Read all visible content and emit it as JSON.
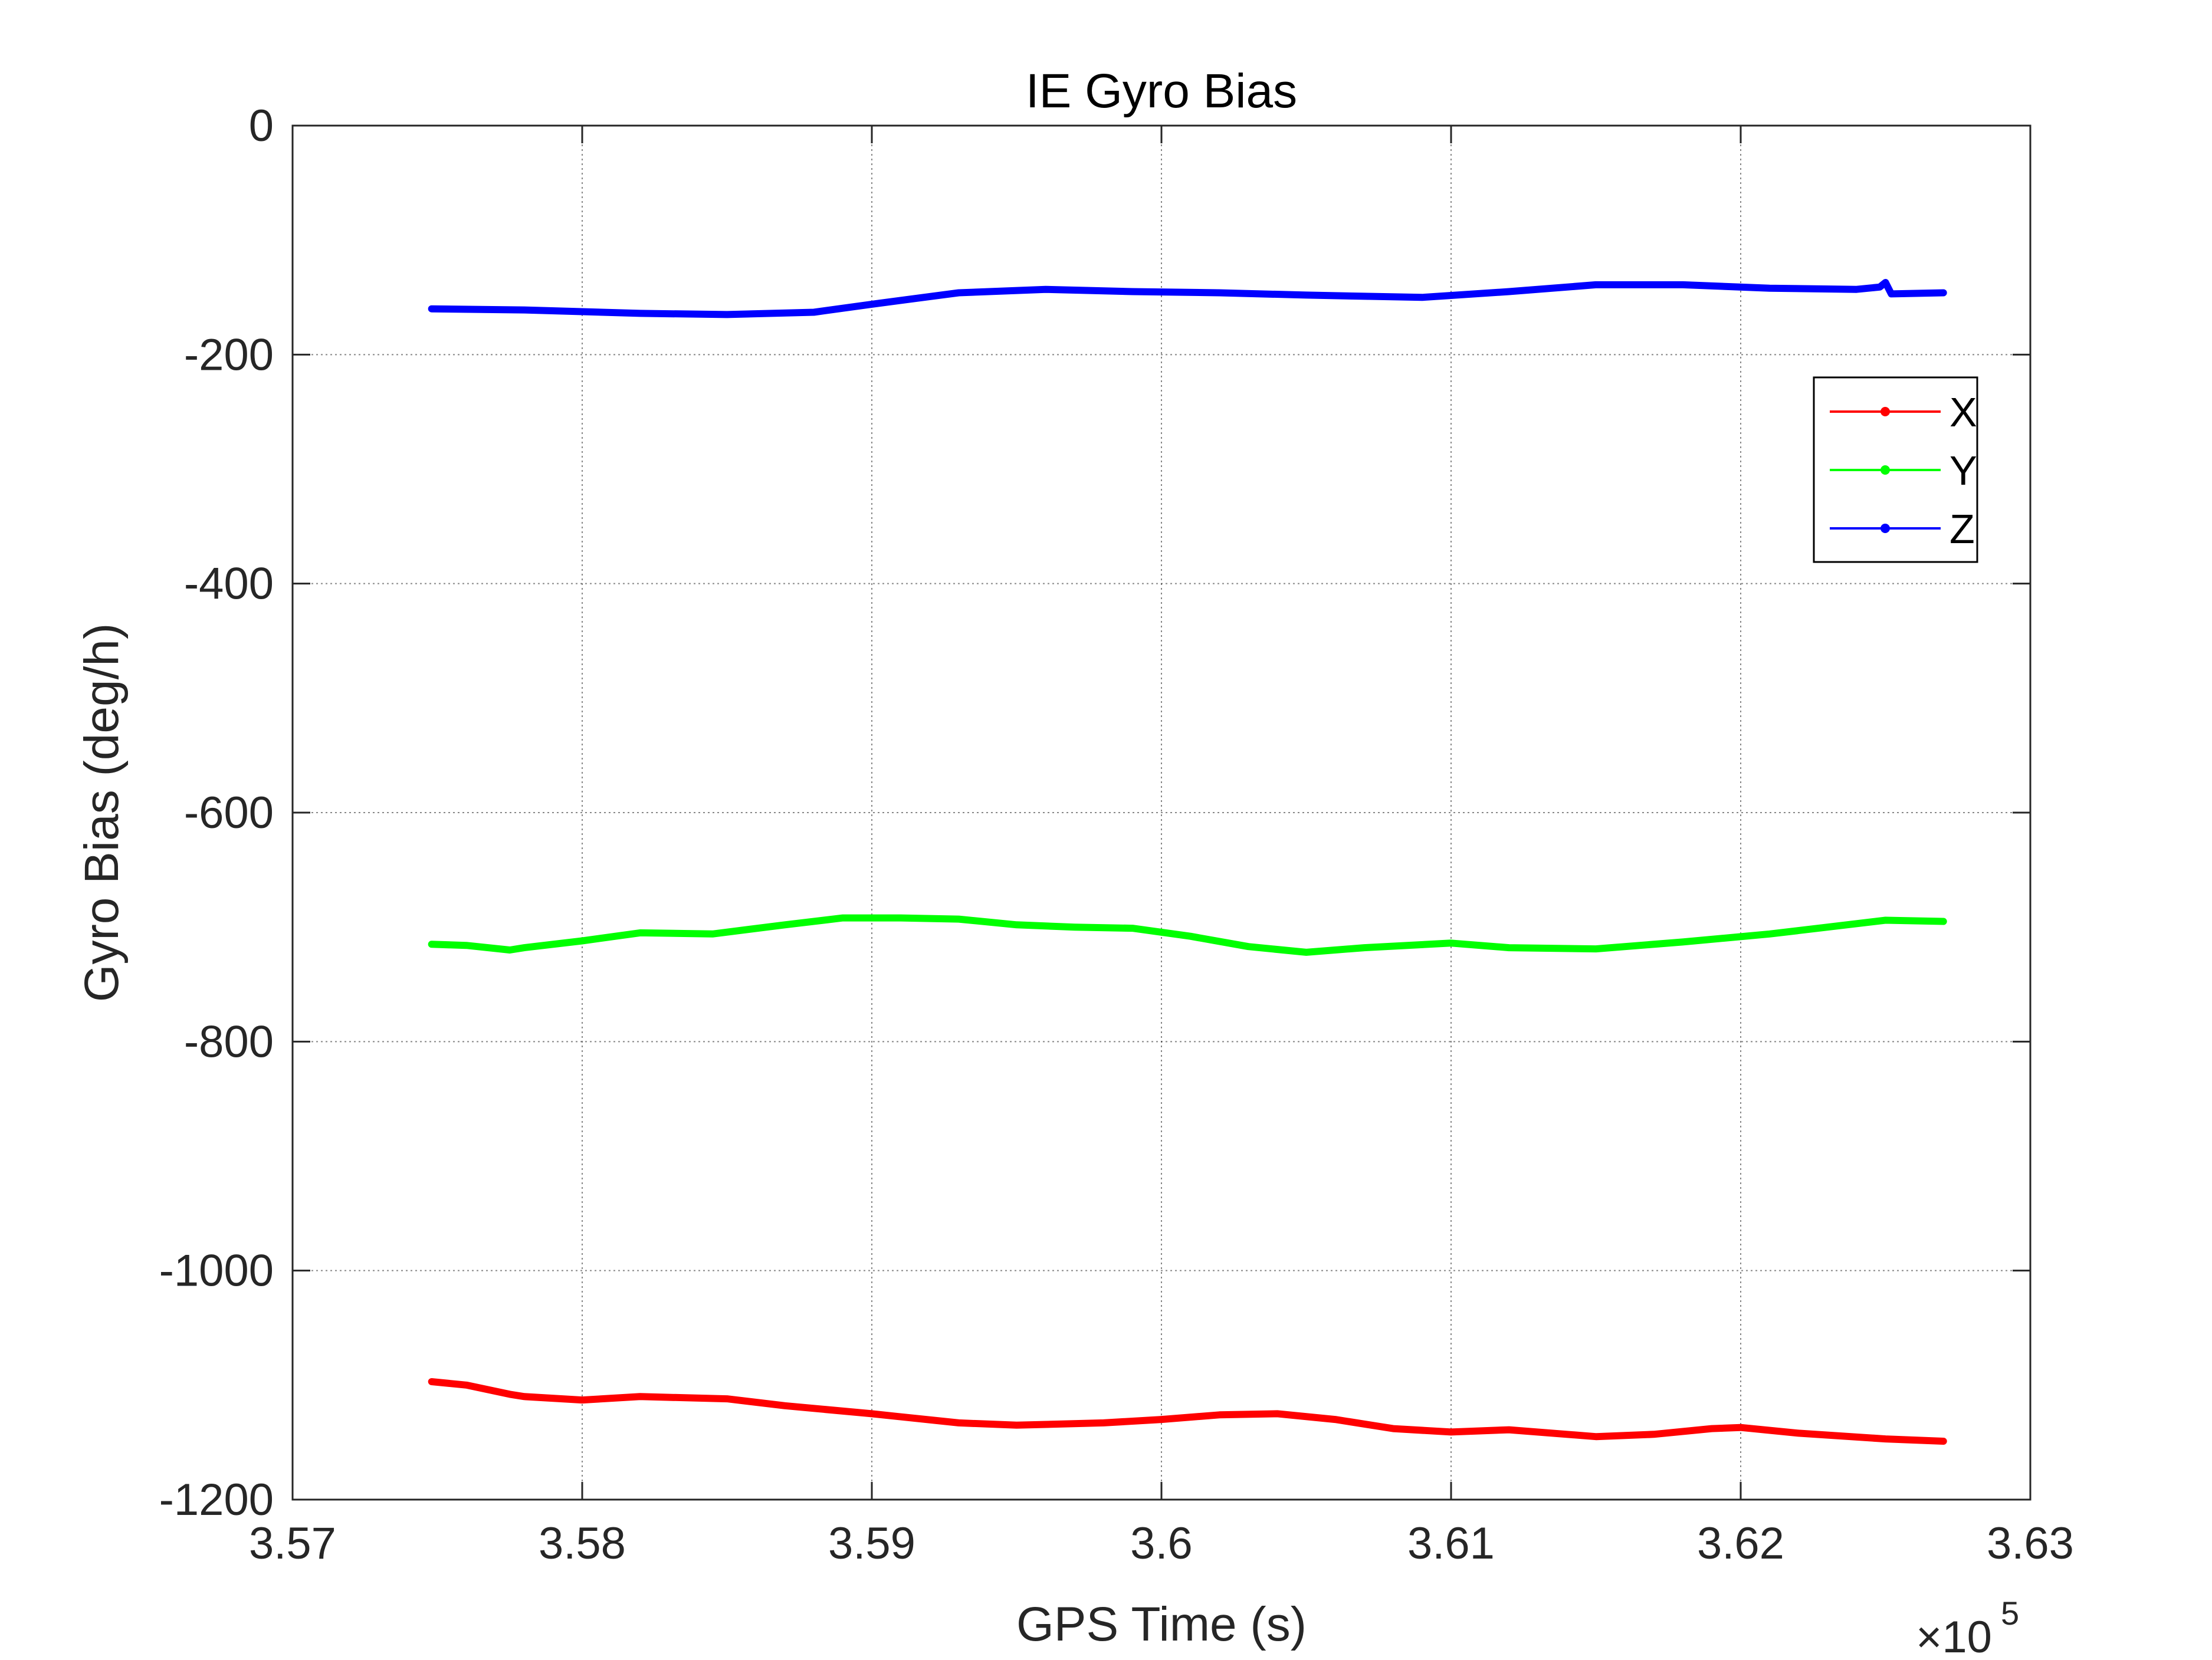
{
  "chart_data": {
    "type": "line",
    "title": "IE Gyro Bias",
    "xlabel": "GPS Time (s)",
    "ylabel": "Gyro Bias (deg/h)",
    "x_multiplier_label": "×10",
    "x_multiplier_exponent": "5",
    "xlim": [
      357000,
      363000
    ],
    "ylim": [
      -1200,
      0
    ],
    "xticks": [
      357000,
      358000,
      359000,
      360000,
      361000,
      362000,
      363000
    ],
    "xtick_labels": [
      "3.57",
      "3.58",
      "3.59",
      "3.6",
      "3.61",
      "3.62",
      "3.63"
    ],
    "yticks": [
      0,
      -200,
      -400,
      -600,
      -800,
      -1000,
      -1200
    ],
    "ytick_labels": [
      "0",
      "-200",
      "-400",
      "-600",
      "-800",
      "-1000",
      "-1200"
    ],
    "grid": true,
    "legend_position": "top-right",
    "series": [
      {
        "name": "X",
        "color": "#ff0000",
        "points": [
          [
            357480,
            -1097
          ],
          [
            357600,
            -1100
          ],
          [
            357750,
            -1108
          ],
          [
            357800,
            -1110
          ],
          [
            358000,
            -1113
          ],
          [
            358200,
            -1110
          ],
          [
            358500,
            -1112
          ],
          [
            358700,
            -1118
          ],
          [
            359000,
            -1125
          ],
          [
            359300,
            -1133
          ],
          [
            359500,
            -1135
          ],
          [
            359800,
            -1133
          ],
          [
            360000,
            -1130
          ],
          [
            360200,
            -1126
          ],
          [
            360400,
            -1125
          ],
          [
            360600,
            -1130
          ],
          [
            360800,
            -1138
          ],
          [
            361000,
            -1141
          ],
          [
            361200,
            -1139
          ],
          [
            361500,
            -1145
          ],
          [
            361700,
            -1143
          ],
          [
            361900,
            -1138
          ],
          [
            362000,
            -1137
          ],
          [
            362200,
            -1142
          ],
          [
            362500,
            -1147
          ],
          [
            362700,
            -1149
          ]
        ]
      },
      {
        "name": "Y",
        "color": "#00ff00",
        "points": [
          [
            357480,
            -715
          ],
          [
            357600,
            -716
          ],
          [
            357750,
            -720
          ],
          [
            357800,
            -718
          ],
          [
            358000,
            -712
          ],
          [
            358200,
            -705
          ],
          [
            358450,
            -706
          ],
          [
            358700,
            -698
          ],
          [
            358900,
            -692
          ],
          [
            359100,
            -692
          ],
          [
            359300,
            -693
          ],
          [
            359500,
            -698
          ],
          [
            359700,
            -700
          ],
          [
            359900,
            -701
          ],
          [
            360100,
            -708
          ],
          [
            360300,
            -717
          ],
          [
            360500,
            -722
          ],
          [
            360700,
            -718
          ],
          [
            361000,
            -714
          ],
          [
            361200,
            -718
          ],
          [
            361500,
            -719
          ],
          [
            361800,
            -713
          ],
          [
            362100,
            -706
          ],
          [
            362300,
            -700
          ],
          [
            362500,
            -694
          ],
          [
            362700,
            -695
          ]
        ]
      },
      {
        "name": "Z",
        "color": "#0000ff",
        "points": [
          [
            357480,
            -160
          ],
          [
            357800,
            -161
          ],
          [
            358200,
            -164
          ],
          [
            358500,
            -165
          ],
          [
            358800,
            -163
          ],
          [
            359000,
            -156
          ],
          [
            359300,
            -146
          ],
          [
            359600,
            -143
          ],
          [
            359900,
            -145
          ],
          [
            360200,
            -146
          ],
          [
            360500,
            -148
          ],
          [
            360900,
            -150
          ],
          [
            361200,
            -145
          ],
          [
            361500,
            -139
          ],
          [
            361800,
            -139
          ],
          [
            362100,
            -142
          ],
          [
            362400,
            -143
          ],
          [
            362480,
            -141
          ],
          [
            362500,
            -137
          ],
          [
            362520,
            -147
          ],
          [
            362700,
            -146
          ]
        ]
      }
    ]
  }
}
